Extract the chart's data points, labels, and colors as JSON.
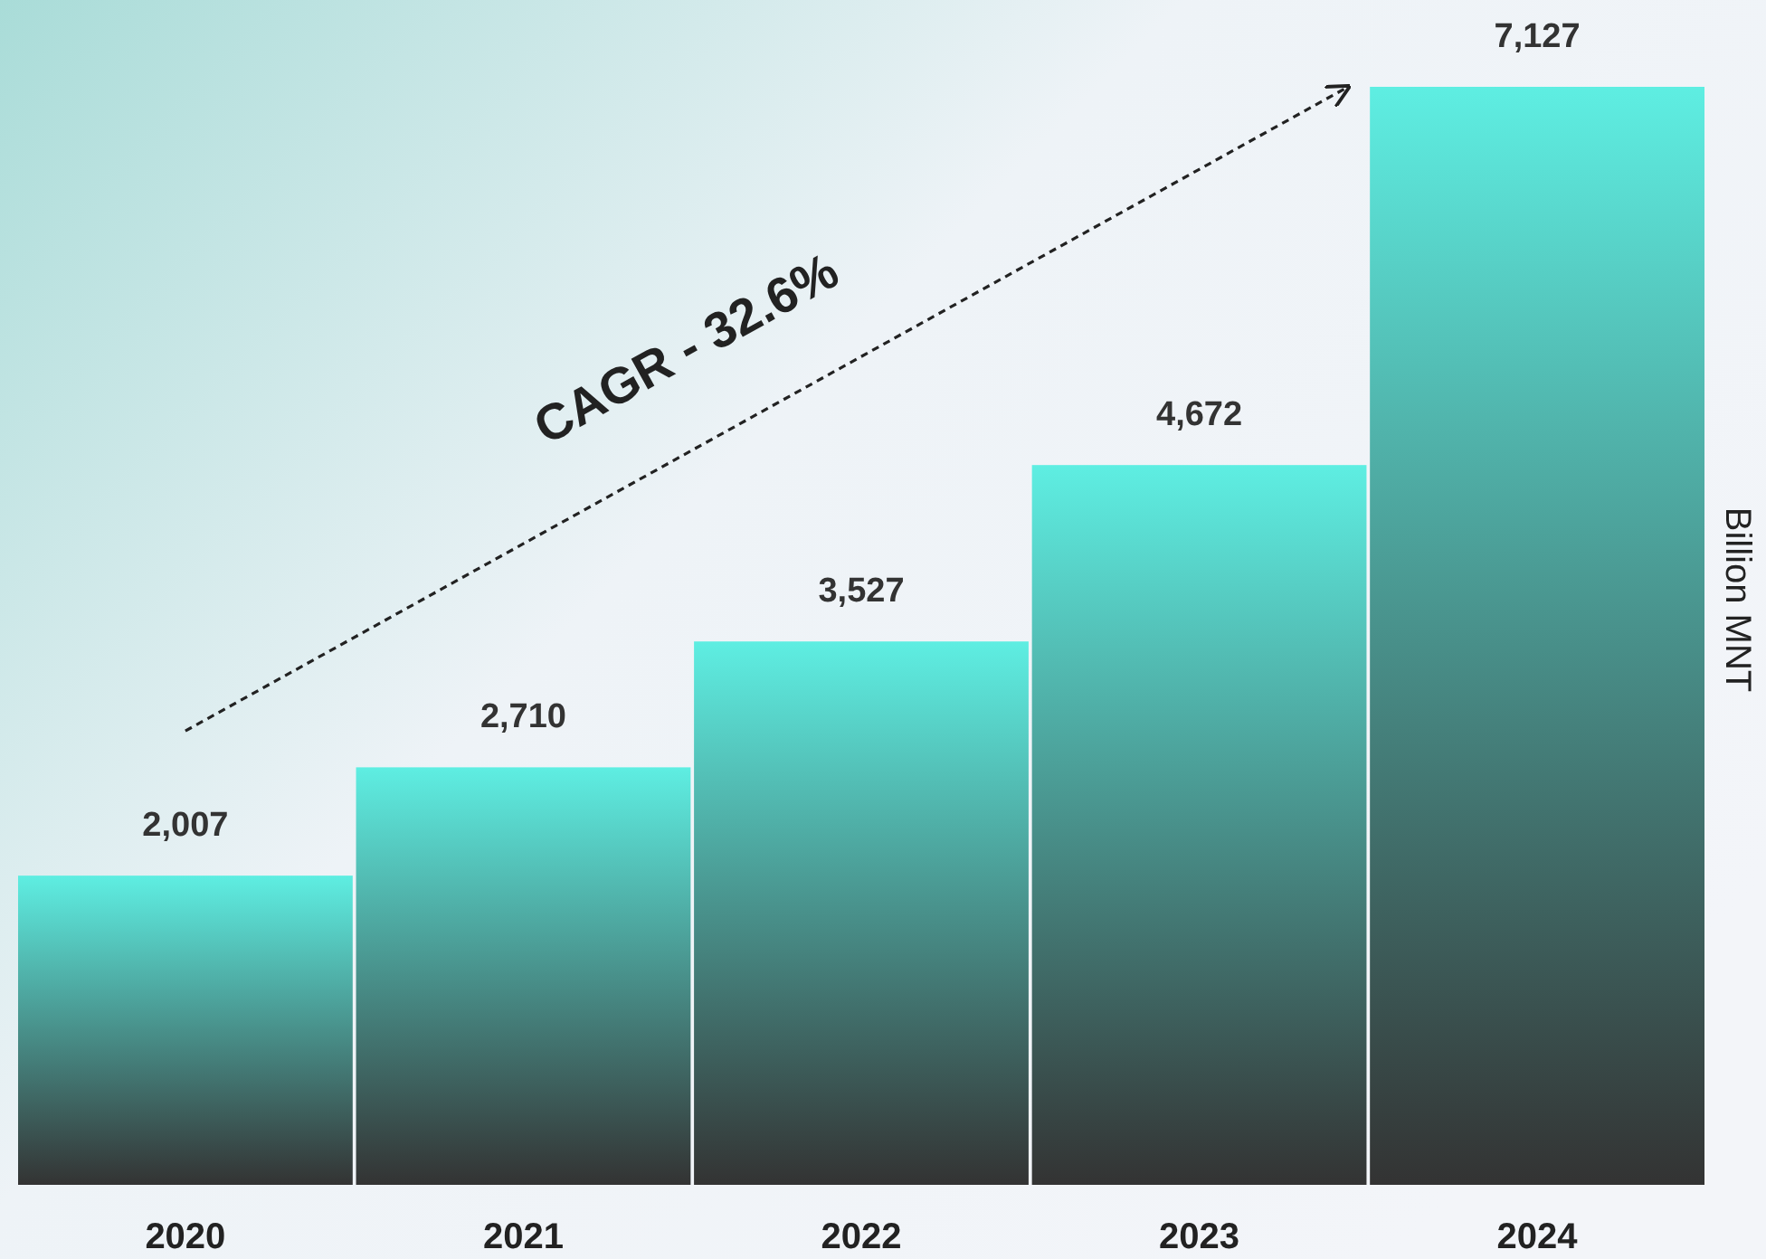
{
  "chart_data": {
    "type": "bar",
    "ylabel": "Billion MNT",
    "categories": [
      "2020",
      "2021",
      "2022",
      "2023",
      "2024"
    ],
    "series": [
      {
        "color": "#5eeee2",
        "values": [
          2007,
          2710,
          3527,
          4672,
          7127
        ],
        "value_labels": [
          "2,007",
          "2,710",
          "3,527",
          "4,672",
          "7,127"
        ]
      }
    ],
    "annotations": [
      "CAGR - 32.6%"
    ]
  }
}
